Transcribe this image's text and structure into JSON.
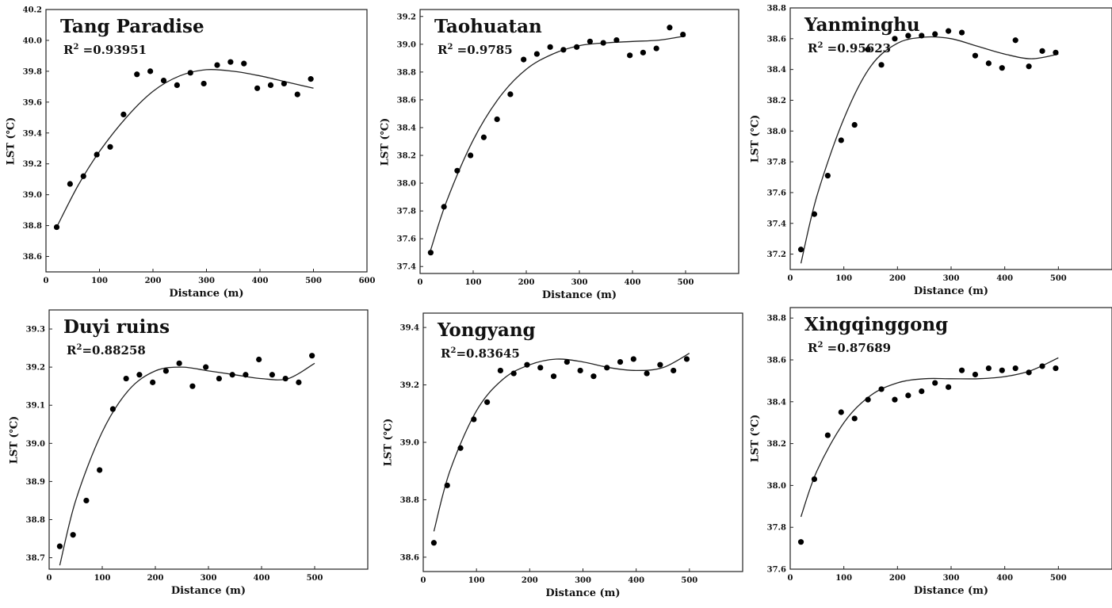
{
  "chart_data": [
    {
      "type": "scatter",
      "title": "Tang Paradise",
      "r2_label": "R",
      "r2_sup": "2",
      "r2_value": " =0.93951",
      "xlabel": "Distance (m)",
      "ylabel": "LST (℃)",
      "xlim": [
        0,
        600
      ],
      "ylim": [
        38.5,
        40.2
      ],
      "xticks": [
        "0",
        "100",
        "200",
        "300",
        "400",
        "500",
        "600"
      ],
      "yticks": [
        "38.6",
        "38.8",
        "39.0",
        "39.2",
        "39.4",
        "39.6",
        "39.8",
        "40.0",
        "40.2"
      ],
      "x": [
        20,
        45,
        70,
        95,
        120,
        145,
        170,
        195,
        220,
        245,
        270,
        295,
        320,
        345,
        370,
        395,
        420,
        445,
        470,
        495
      ],
      "y": [
        38.79,
        39.07,
        39.12,
        39.26,
        39.31,
        39.52,
        39.78,
        39.8,
        39.74,
        39.71,
        39.79,
        39.72,
        39.84,
        39.86,
        39.85,
        39.69,
        39.71,
        39.72,
        39.65,
        39.75
      ],
      "fit_x": [
        20,
        60,
        100,
        150,
        200,
        250,
        300,
        350,
        400,
        450,
        500
      ],
      "fit_y": [
        38.79,
        39.06,
        39.28,
        39.5,
        39.67,
        39.77,
        39.81,
        39.8,
        39.77,
        39.73,
        39.69
      ]
    },
    {
      "type": "scatter",
      "title": "Taohuatan",
      "r2_label": "R",
      "r2_sup": "2",
      "r2_value": " =0.9785",
      "xlabel": "Distance (m)",
      "ylabel": "LST (℃)",
      "xlim": [
        0,
        600
      ],
      "ylim": [
        37.35,
        39.25
      ],
      "xticks": [
        "0",
        "100",
        "200",
        "300",
        "400",
        "500"
      ],
      "yticks": [
        "37.4",
        "37.6",
        "37.8",
        "38.0",
        "38.2",
        "38.4",
        "38.6",
        "38.8",
        "39.0",
        "39.2"
      ],
      "x": [
        20,
        45,
        70,
        95,
        120,
        145,
        170,
        195,
        220,
        245,
        270,
        295,
        320,
        345,
        370,
        395,
        420,
        445,
        470,
        495
      ],
      "y": [
        37.5,
        37.83,
        38.09,
        38.2,
        38.33,
        38.46,
        38.64,
        38.89,
        38.93,
        38.98,
        38.96,
        38.98,
        39.02,
        39.01,
        39.03,
        38.92,
        38.94,
        38.97,
        39.12,
        39.07
      ],
      "fit_x": [
        20,
        50,
        100,
        150,
        200,
        250,
        300,
        350,
        400,
        450,
        500
      ],
      "fit_y": [
        37.52,
        37.87,
        38.31,
        38.62,
        38.82,
        38.93,
        38.99,
        39.01,
        39.02,
        39.03,
        39.06
      ]
    },
    {
      "type": "scatter",
      "title": "Yanminghu",
      "r2_label": "R",
      "r2_sup": "2",
      "r2_value": " =0.95623",
      "xlabel": "Distance (m)",
      "ylabel": "LST (℃)",
      "xlim": [
        0,
        600
      ],
      "ylim": [
        37.1,
        38.8
      ],
      "xticks": [
        "0",
        "100",
        "200",
        "300",
        "400",
        "500"
      ],
      "yticks": [
        "37.2",
        "37.4",
        "37.6",
        "37.8",
        "38.0",
        "38.2",
        "38.4",
        "38.6",
        "38.8"
      ],
      "x": [
        20,
        45,
        70,
        95,
        120,
        145,
        170,
        195,
        220,
        245,
        270,
        295,
        320,
        345,
        370,
        395,
        420,
        445,
        470,
        495
      ],
      "y": [
        37.23,
        37.46,
        37.71,
        37.94,
        38.04,
        38.53,
        38.43,
        38.6,
        38.62,
        38.62,
        38.63,
        38.65,
        38.64,
        38.49,
        38.44,
        38.41,
        38.59,
        38.42,
        38.52,
        38.51
      ],
      "fit_x": [
        20,
        50,
        100,
        150,
        200,
        250,
        300,
        350,
        400,
        450,
        500
      ],
      "fit_y": [
        37.14,
        37.58,
        38.08,
        38.42,
        38.57,
        38.61,
        38.6,
        38.55,
        38.5,
        38.47,
        38.5
      ]
    },
    {
      "type": "scatter",
      "title": "Duyi ruins",
      "r2_label": "R",
      "r2_sup": "2",
      "r2_value": "=0.88258",
      "xlabel": "Distance (m)",
      "ylabel": "LST (℃)",
      "xlim": [
        0,
        600
      ],
      "ylim": [
        38.67,
        39.35
      ],
      "xticks": [
        "0",
        "100",
        "200",
        "300",
        "400",
        "500"
      ],
      "yticks": [
        "38.7",
        "38.8",
        "38.9",
        "39.0",
        "39.1",
        "39.2",
        "39.3"
      ],
      "x": [
        20,
        45,
        70,
        95,
        120,
        145,
        170,
        195,
        220,
        245,
        270,
        295,
        320,
        345,
        370,
        395,
        420,
        445,
        470,
        495
      ],
      "y": [
        38.73,
        38.76,
        38.85,
        38.93,
        39.09,
        39.17,
        39.18,
        39.16,
        39.19,
        39.21,
        39.15,
        39.2,
        39.17,
        39.18,
        39.18,
        39.22,
        39.18,
        39.17,
        39.16,
        39.23
      ],
      "fit_x": [
        20,
        50,
        100,
        150,
        200,
        250,
        300,
        350,
        400,
        450,
        500
      ],
      "fit_y": [
        38.68,
        38.85,
        39.03,
        39.14,
        39.19,
        39.2,
        39.19,
        39.18,
        39.17,
        39.17,
        39.21
      ]
    },
    {
      "type": "scatter",
      "title": "Yongyang",
      "r2_label": "R",
      "r2_sup": "2",
      "r2_value": "=0.83645",
      "xlabel": "Distance (m)",
      "ylabel": "LST (℃)",
      "xlim": [
        0,
        600
      ],
      "ylim": [
        38.55,
        39.45
      ],
      "xticks": [
        "0",
        "100",
        "200",
        "300",
        "400",
        "500"
      ],
      "yticks": [
        "38.6",
        "38.8",
        "39.0",
        "39.2",
        "39.4"
      ],
      "x": [
        20,
        45,
        70,
        95,
        120,
        145,
        170,
        195,
        220,
        245,
        270,
        295,
        320,
        345,
        370,
        395,
        420,
        445,
        470,
        495
      ],
      "y": [
        38.65,
        38.85,
        38.98,
        39.08,
        39.14,
        39.25,
        39.24,
        39.27,
        39.26,
        39.23,
        39.28,
        39.25,
        39.23,
        39.26,
        39.28,
        39.29,
        39.24,
        39.27,
        39.25,
        39.29
      ],
      "fit_x": [
        20,
        50,
        100,
        150,
        200,
        250,
        300,
        350,
        400,
        450,
        500
      ],
      "fit_y": [
        38.69,
        38.9,
        39.11,
        39.22,
        39.27,
        39.29,
        39.28,
        39.26,
        39.25,
        39.26,
        39.31
      ]
    },
    {
      "type": "scatter",
      "title": "Xingqinggong",
      "r2_label": "R",
      "r2_sup": "2",
      "r2_value": " =0.87689",
      "xlabel": "Distance (m)",
      "ylabel": "LST (℃)",
      "xlim": [
        0,
        600
      ],
      "ylim": [
        37.6,
        38.85
      ],
      "xticks": [
        "0",
        "100",
        "200",
        "300",
        "400",
        "500"
      ],
      "yticks": [
        "37.6",
        "37.8",
        "38.0",
        "38.2",
        "38.4",
        "38.6",
        "38.8"
      ],
      "x": [
        20,
        45,
        70,
        95,
        120,
        145,
        170,
        195,
        220,
        245,
        270,
        295,
        320,
        345,
        370,
        395,
        420,
        445,
        470,
        495
      ],
      "y": [
        37.73,
        38.03,
        38.24,
        38.35,
        38.32,
        38.41,
        38.46,
        38.41,
        38.43,
        38.45,
        38.49,
        38.47,
        38.55,
        38.53,
        38.56,
        38.55,
        38.56,
        38.54,
        38.57,
        38.56
      ],
      "fit_x": [
        20,
        50,
        100,
        150,
        200,
        250,
        300,
        350,
        400,
        450,
        500
      ],
      "fit_y": [
        37.85,
        38.07,
        38.3,
        38.43,
        38.49,
        38.51,
        38.51,
        38.51,
        38.52,
        38.55,
        38.61
      ]
    }
  ]
}
